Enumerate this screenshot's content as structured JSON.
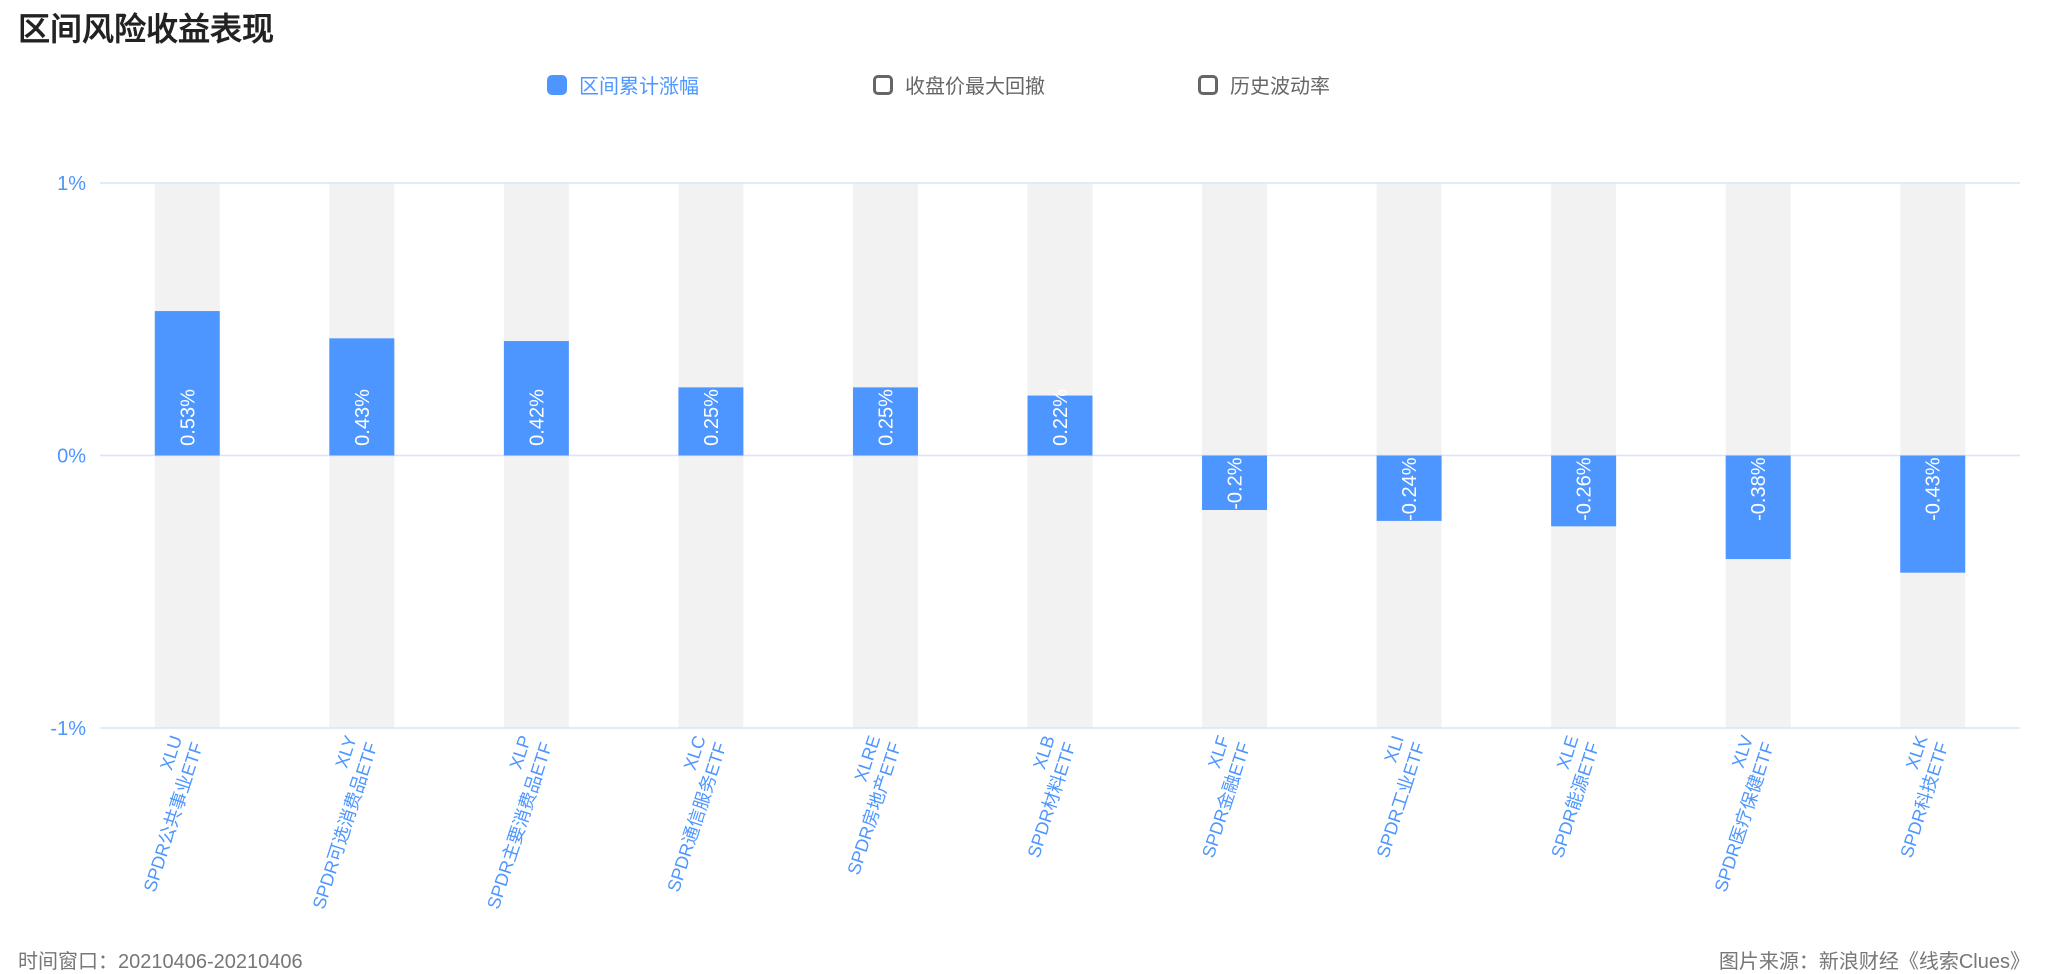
{
  "title": "区间风险收益表现",
  "legend": [
    {
      "label": "区间累计涨幅",
      "active": true
    },
    {
      "label": "收盘价最大回撤",
      "active": false
    },
    {
      "label": "历史波动率",
      "active": false
    }
  ],
  "footer": {
    "left": "时间窗口：20210406-20210406",
    "right": "图片来源：新浪财经《线索Clues》"
  },
  "colors": {
    "bar": "#4d96ff",
    "band": "#f2f2f2",
    "axis": "#4d96ff",
    "grid": "#d6e6fb"
  },
  "chart_data": {
    "type": "bar",
    "yticks": [
      "1%",
      "0%",
      "-1%"
    ],
    "ylim": [
      -1,
      1
    ],
    "categories": [
      {
        "code": "XLU",
        "name": "SPDR公共事业ETF"
      },
      {
        "code": "XLY",
        "name": "SPDR可选消费品ETF"
      },
      {
        "code": "XLP",
        "name": "SPDR主要消费品ETF"
      },
      {
        "code": "XLC",
        "name": "SPDR通信服务ETF"
      },
      {
        "code": "XLRE",
        "name": "SPDR房地产ETF"
      },
      {
        "code": "XLB",
        "name": "SPDR材料ETF"
      },
      {
        "code": "XLF",
        "name": "SPDR金融ETF"
      },
      {
        "code": "XLI",
        "name": "SPDR工业ETF"
      },
      {
        "code": "XLE",
        "name": "SPDR能源ETF"
      },
      {
        "code": "XLV",
        "name": "SPDR医疗保健ETF"
      },
      {
        "code": "XLK",
        "name": "SPDR科技ETF"
      }
    ],
    "series": [
      {
        "name": "区间累计涨幅",
        "values": [
          0.53,
          0.43,
          0.42,
          0.25,
          0.25,
          0.22,
          -0.2,
          -0.24,
          -0.26,
          -0.38,
          -0.43
        ],
        "labels": [
          "0.53%",
          "0.43%",
          "0.42%",
          "0.25%",
          "0.25%",
          "0.22%",
          "-0.2%",
          "-0.24%",
          "-0.26%",
          "-0.38%",
          "-0.43%"
        ]
      }
    ]
  }
}
